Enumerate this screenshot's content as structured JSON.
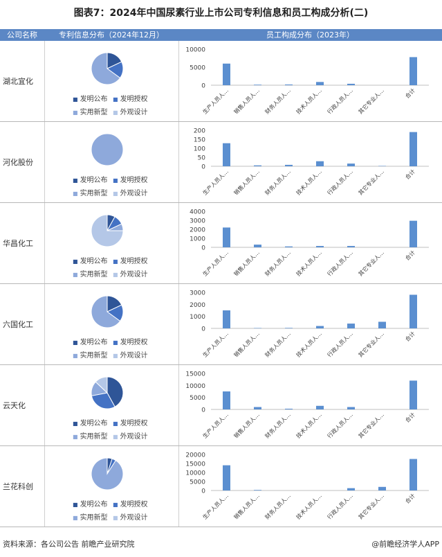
{
  "title": "图表7：2024年中国尿素行业上市公司专利信息和员工构成分析(二)",
  "headers": {
    "company": "公司名称",
    "patent": "专利信息分布（2024年12月）",
    "staff": "员工构成分布（2023年）"
  },
  "legend_labels": [
    "发明公布",
    "发明授权",
    "实用新型",
    "外观设计"
  ],
  "colors": {
    "header_bg": "#5b87c5",
    "bar": "#5b8fd0",
    "pie": [
      "#2f5597",
      "#4472c4",
      "#8ea9db",
      "#b4c7e7"
    ]
  },
  "footer": {
    "source": "资料来源：各公司公告 前瞻产业研究院",
    "brand": "@前瞻经济学人APP"
  },
  "chart_data": [
    {
      "type": "pie",
      "company": "湖北宜化",
      "labels": [
        "发明公布",
        "发明授权",
        "实用新型",
        "外观设计"
      ],
      "values": [
        18,
        17,
        65,
        0
      ]
    },
    {
      "type": "bar",
      "company": "湖北宜化",
      "categories": [
        "生产人员人…",
        "销售人员人…",
        "财务人员人…",
        "技术人员人…",
        "行政人员人…",
        "其它专业人…",
        "合计"
      ],
      "values": [
        6000,
        150,
        200,
        900,
        400,
        0,
        7800
      ],
      "yticks": [
        "0",
        "5000",
        "10000"
      ],
      "ylim": [
        0,
        10000
      ]
    },
    {
      "type": "pie",
      "company": "河化股份",
      "labels": [
        "发明公布",
        "发明授权",
        "实用新型",
        "外观设计"
      ],
      "values": [
        0,
        0,
        100,
        0
      ]
    },
    {
      "type": "bar",
      "company": "河化股份",
      "categories": [
        "生产人员人…",
        "销售人员人…",
        "财务人员人…",
        "技术人员人…",
        "行政人员人…",
        "其它专业人…",
        "合计"
      ],
      "values": [
        128,
        5,
        8,
        28,
        15,
        2,
        190
      ],
      "yticks": [
        "0",
        "50",
        "100",
        "150",
        "200"
      ],
      "ylim": [
        0,
        200
      ]
    },
    {
      "type": "pie",
      "company": "华昌化工",
      "labels": [
        "发明公布",
        "发明授权",
        "实用新型",
        "外观设计"
      ],
      "values": [
        8,
        10,
        7,
        75
      ]
    },
    {
      "type": "bar",
      "company": "华昌化工",
      "categories": [
        "生产人员人…",
        "销售人员人…",
        "财务人员人…",
        "技术人员人…",
        "行政人员人…",
        "其它专业人…",
        "合计"
      ],
      "values": [
        2200,
        300,
        100,
        150,
        150,
        0,
        2950
      ],
      "yticks": [
        "0",
        "1000",
        "2000",
        "3000",
        "4000"
      ],
      "ylim": [
        0,
        4000
      ]
    },
    {
      "type": "pie",
      "company": "六国化工",
      "labels": [
        "发明公布",
        "发明授权",
        "实用新型",
        "外观设计"
      ],
      "values": [
        18,
        17,
        65,
        0
      ]
    },
    {
      "type": "bar",
      "company": "六国化工",
      "categories": [
        "生产人员人…",
        "销售人员人…",
        "财务人员人…",
        "技术人员人…",
        "行政人员人…",
        "其它专业人…",
        "合计"
      ],
      "values": [
        1500,
        30,
        40,
        200,
        400,
        550,
        2800
      ],
      "yticks": [
        "0",
        "1000",
        "2000",
        "3000"
      ],
      "ylim": [
        0,
        3000
      ]
    },
    {
      "type": "pie",
      "company": "云天化",
      "labels": [
        "发明公布",
        "发明授权",
        "实用新型",
        "外观设计"
      ],
      "values": [
        42,
        30,
        15,
        13
      ]
    },
    {
      "type": "bar",
      "company": "云天化",
      "categories": [
        "生产人员人…",
        "销售人员人…",
        "财务人员人…",
        "技术人员人…",
        "行政人员人…",
        "其它专业人…",
        "合计"
      ],
      "values": [
        7500,
        1000,
        300,
        1500,
        1000,
        0,
        12000
      ],
      "yticks": [
        "0",
        "5000",
        "10000",
        "15000"
      ],
      "ylim": [
        0,
        15000
      ]
    },
    {
      "type": "pie",
      "company": "兰花科创",
      "labels": [
        "发明公布",
        "发明授权",
        "实用新型",
        "外观设计"
      ],
      "values": [
        5,
        4,
        91,
        0
      ]
    },
    {
      "type": "bar",
      "company": "兰花科创",
      "categories": [
        "生产人员人…",
        "销售人员人…",
        "财务人员人…",
        "技术人员人…",
        "行政人员人…",
        "其它专业人…",
        "合计"
      ],
      "values": [
        14000,
        300,
        0,
        0,
        1300,
        2000,
        17500
      ],
      "yticks": [
        "0",
        "5000",
        "10000",
        "15000",
        "20000"
      ],
      "ylim": [
        0,
        20000
      ]
    }
  ]
}
